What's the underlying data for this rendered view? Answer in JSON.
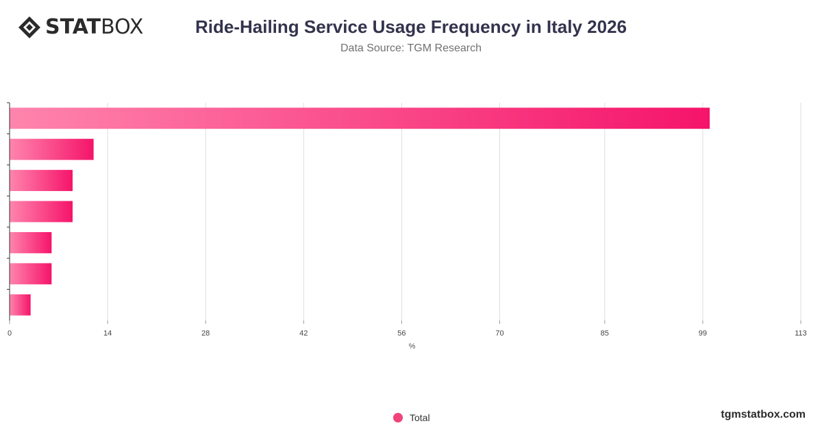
{
  "header": {
    "logo_text_bold": "STAT",
    "logo_text_light": "BOX",
    "title": "Ride-Hailing Service Usage Frequency in Italy 2026",
    "subtitle": "Data Source: TGM Research"
  },
  "footer": {
    "site": "tgmstatbox.com"
  },
  "colors": {
    "bar_start": "#ff85ad",
    "bar_end": "#f5146a",
    "legend_dot": "#f0437a",
    "grid": "#dddddd"
  },
  "chart_data": {
    "type": "bar",
    "orientation": "horizontal",
    "title": "Ride-Hailing Service Usage Frequency in Italy 2026",
    "subtitle": "Data Source: TGM Research",
    "xlabel": "%",
    "ylabel": "",
    "categories": [
      "",
      "",
      "",
      "",
      "",
      "",
      ""
    ],
    "series": [
      {
        "name": "Total",
        "values": [
          100,
          12,
          9,
          9,
          6,
          6,
          3
        ]
      }
    ],
    "xlim": [
      0,
      113
    ],
    "xticks": [
      "0",
      "14",
      "28",
      "42",
      "56",
      "70",
      "85",
      "99",
      "113"
    ],
    "grid": true,
    "legend": "bottom-center"
  }
}
